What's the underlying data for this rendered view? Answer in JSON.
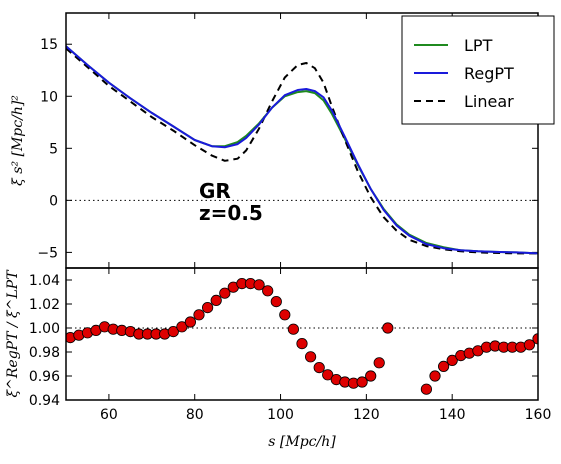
{
  "chart_data": [
    {
      "type": "line",
      "xlabel": "",
      "ylabel": "ξ s² [Mpc/h]²",
      "xlim": [
        50,
        160
      ],
      "ylim": [
        -6.5,
        18
      ],
      "yticks": [
        -5,
        0,
        5,
        10,
        15
      ],
      "yticks_labels": [
        "−5",
        "0",
        "5",
        "10",
        "15"
      ],
      "grid": false,
      "legend_position": "top-right",
      "reference_line": {
        "y": 0,
        "style": "dotted"
      },
      "annotations": [
        "GR",
        "z=0.5"
      ],
      "series": [
        {
          "name": "LPT",
          "color": "#1f8a1f",
          "dash": "solid",
          "x": [
            50,
            55,
            60,
            65,
            70,
            75,
            80,
            84,
            87,
            90,
            92,
            95,
            98,
            101,
            104,
            106,
            108,
            110,
            112,
            115,
            118,
            121,
            124,
            127,
            130,
            134,
            138,
            142,
            146,
            150,
            155,
            160
          ],
          "y": [
            14.8,
            13.0,
            11.3,
            9.8,
            8.4,
            7.1,
            5.8,
            5.2,
            5.2,
            5.6,
            6.2,
            7.4,
            8.9,
            10.0,
            10.4,
            10.5,
            10.3,
            9.6,
            8.3,
            5.9,
            3.4,
            1.1,
            -0.8,
            -2.3,
            -3.3,
            -4.1,
            -4.5,
            -4.8,
            -4.9,
            -4.95,
            -5.0,
            -5.1
          ]
        },
        {
          "name": "RegPT",
          "color": "#1a1adb",
          "dash": "solid",
          "x": [
            50,
            55,
            60,
            65,
            70,
            75,
            80,
            84,
            87,
            90,
            92,
            95,
            98,
            101,
            104,
            106,
            108,
            110,
            112,
            115,
            118,
            121,
            124,
            127,
            130,
            134,
            138,
            142,
            146,
            150,
            155,
            160
          ],
          "y": [
            14.8,
            13.0,
            11.3,
            9.8,
            8.4,
            7.1,
            5.8,
            5.2,
            5.1,
            5.4,
            6.0,
            7.3,
            8.9,
            10.1,
            10.6,
            10.7,
            10.5,
            9.9,
            8.6,
            6.1,
            3.5,
            1.1,
            -0.9,
            -2.4,
            -3.4,
            -4.2,
            -4.6,
            -4.8,
            -4.9,
            -4.95,
            -5.0,
            -5.1
          ]
        },
        {
          "name": "Linear",
          "color": "#000000",
          "dash": "dashed",
          "x": [
            50,
            55,
            60,
            65,
            70,
            75,
            80,
            84,
            87,
            90,
            92,
            95,
            98,
            101,
            104,
            106,
            108,
            110,
            112,
            115,
            118,
            121,
            124,
            127,
            130,
            134,
            138,
            142,
            146,
            150,
            155,
            160
          ],
          "y": [
            14.6,
            12.8,
            11.0,
            9.5,
            8.0,
            6.7,
            5.3,
            4.3,
            3.8,
            4.0,
            4.8,
            6.9,
            9.5,
            11.8,
            13.0,
            13.2,
            12.7,
            11.3,
            9.0,
            5.8,
            2.8,
            0.3,
            -1.6,
            -2.9,
            -3.8,
            -4.4,
            -4.7,
            -4.9,
            -5.0,
            -5.05,
            -5.1,
            -5.1
          ]
        }
      ]
    },
    {
      "type": "scatter",
      "xlabel": "s [Mpc/h]",
      "ylabel": "ξ^RegPT / ξ^LPT",
      "xlim": [
        50,
        160
      ],
      "ylim": [
        0.94,
        1.05
      ],
      "xticks": [
        60,
        80,
        100,
        120,
        140,
        160
      ],
      "yticks": [
        0.94,
        0.96,
        0.98,
        1.0,
        1.02,
        1.04
      ],
      "yticks_labels": [
        "0.94",
        "0.96",
        "0.98",
        "1.00",
        "1.02",
        "1.04"
      ],
      "grid": false,
      "reference_line": {
        "y": 1.0,
        "style": "dotted"
      },
      "series": [
        {
          "color": "#dd0000",
          "marker": "circle",
          "x": [
            51,
            53,
            55,
            57,
            59,
            61,
            63,
            65,
            67,
            69,
            71,
            73,
            75,
            77,
            79,
            81,
            83,
            85,
            87,
            89,
            91,
            93,
            95,
            97,
            99,
            101,
            103,
            105,
            107,
            109,
            111,
            113,
            115,
            117,
            119,
            121,
            123,
            125,
            134,
            136,
            138,
            140,
            142,
            144,
            146,
            148,
            150,
            152,
            154,
            156,
            158,
            160
          ],
          "y": [
            0.992,
            0.994,
            0.996,
            0.998,
            1.001,
            0.999,
            0.998,
            0.997,
            0.995,
            0.995,
            0.995,
            0.995,
            0.997,
            1.001,
            1.005,
            1.011,
            1.017,
            1.023,
            1.029,
            1.034,
            1.037,
            1.037,
            1.036,
            1.031,
            1.022,
            1.011,
            0.999,
            0.987,
            0.976,
            0.967,
            0.961,
            0.957,
            0.955,
            0.954,
            0.955,
            0.96,
            0.971,
            1.0,
            0.949,
            0.96,
            0.968,
            0.973,
            0.977,
            0.979,
            0.981,
            0.984,
            0.985,
            0.984,
            0.984,
            0.984,
            0.986,
            0.991
          ]
        }
      ]
    }
  ]
}
